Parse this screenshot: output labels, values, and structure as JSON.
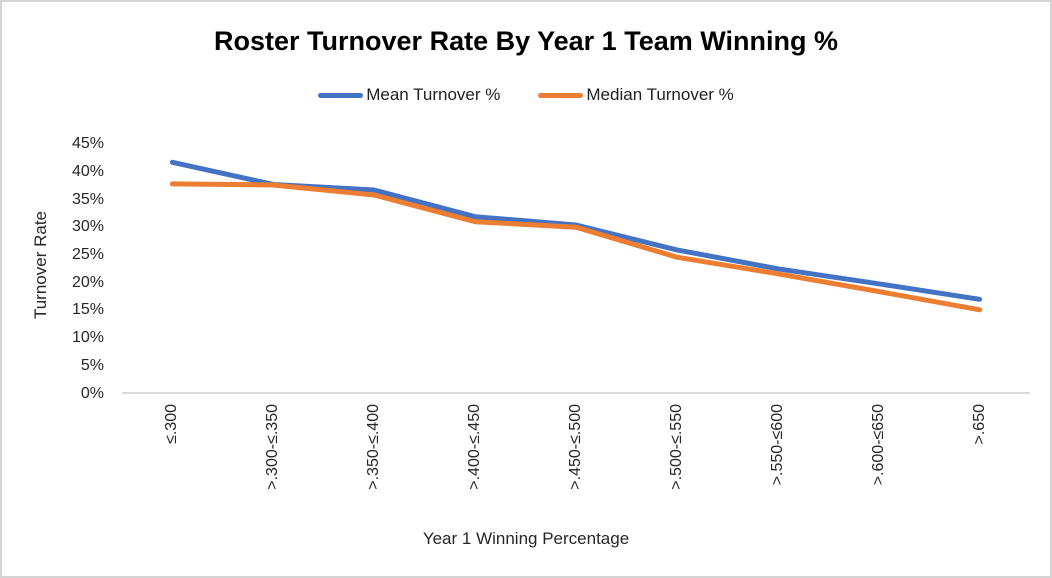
{
  "chart_data": {
    "type": "line",
    "title": "Roster Turnover Rate By Year 1 Team Winning %",
    "xlabel": "Year 1 Winning Percentage",
    "ylabel": "Turnover Rate",
    "categories": [
      "≤.300",
      ">.300-≤.350",
      ">.350-≤.400",
      ">.400-≤.450",
      ">.450-≤.500",
      ">.500-≤.550",
      ">.550-≤600",
      ">.600-≤650",
      ">.650"
    ],
    "series": [
      {
        "name": "Mean Turnover %",
        "color": "#4472C4",
        "values": [
          41.7,
          37.7,
          36.7,
          31.9,
          30.4,
          25.9,
          22.5,
          19.8,
          17.0
        ]
      },
      {
        "name": "Median Turnover %",
        "color": "#ED7D31",
        "values": [
          37.8,
          37.6,
          35.8,
          31.0,
          30.0,
          24.6,
          21.6,
          18.4,
          15.1
        ]
      }
    ],
    "ylim": [
      0,
      45
    ],
    "y_tick_step": 5,
    "y_tick_labels": [
      "0%",
      "5%",
      "10%",
      "15%",
      "20%",
      "25%",
      "30%",
      "35%",
      "40%",
      "45%"
    ],
    "grid": false,
    "legend_position": "top",
    "axis_line_color": "#D9D9D9"
  }
}
